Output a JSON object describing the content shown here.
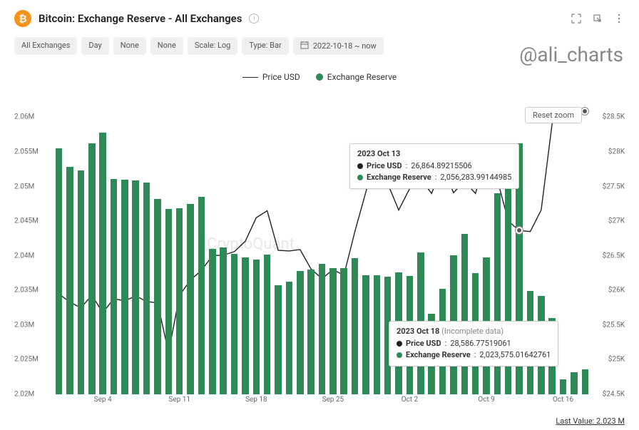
{
  "header": {
    "title": "Bitcoin: Exchange Reserve - All Exchanges",
    "logo_glyph": "₿",
    "logo_color": "#f7931a"
  },
  "filters": {
    "exchange": "All Exchanges",
    "interval": "Day",
    "sma1": "None",
    "sma2": "None",
    "scale": "Scale: Log",
    "type": "Type: Bar",
    "date_range": "2022-10-18 ~ now"
  },
  "watermark": "@ali_charts",
  "watermark_center": "CryptoQuant",
  "legend": {
    "price": "Price USD",
    "reserve": "Exchange Reserve",
    "reserve_color": "#2e8b57"
  },
  "chart": {
    "type": "bar+line",
    "bar_color": "#2e8b57",
    "line_color": "#222222",
    "background_color": "#ffffff",
    "y_left_label_fontsize": 10,
    "y_left_ticks": [
      "2.06M",
      "2.055M",
      "2.05M",
      "2.045M",
      "2.04M",
      "2.035M",
      "2.03M",
      "2.025M",
      "2.02M"
    ],
    "y_left_min": 2020000,
    "y_left_max": 2062000,
    "y_right_ticks": [
      "$28.5K",
      "$28K",
      "$27.5K",
      "$27K",
      "$26.5K",
      "$26K",
      "$25.5K",
      "$25K",
      "$24.5K"
    ],
    "y_right_min": 24500,
    "y_right_max": 28700,
    "x_ticks": [
      "Sep 4",
      "Sep 11",
      "Sep 18",
      "Sep 25",
      "Oct 2",
      "Oct 9",
      "Oct 16"
    ],
    "x_tick_indices": [
      4,
      11,
      18,
      25,
      32,
      39,
      46
    ],
    "bar_width": 0.62,
    "reserve_values": [
      2055500,
      2052800,
      2052300,
      2056200,
      2057800,
      2051100,
      2051000,
      2050900,
      2050600,
      2048200,
      2046800,
      2046900,
      2047500,
      2048500,
      2041000,
      2041200,
      2040300,
      2039800,
      2039500,
      2040200,
      2035800,
      2036300,
      2037800,
      2038000,
      2038800,
      2038200,
      2038200,
      2039700,
      2037200,
      2037200,
      2037000,
      2037600,
      2037100,
      2040500,
      2031600,
      2035200,
      2040100,
      2043200,
      2037500,
      2039800,
      2049000,
      2054000,
      2056280,
      2034900,
      2034200,
      2031000,
      2022200,
      2023200,
      2023575
    ],
    "price_values": [
      25950,
      25830,
      25750,
      25930,
      25680,
      25880,
      25850,
      25920,
      25840,
      25820,
      25100,
      25930,
      26150,
      26290,
      26500,
      26510,
      26560,
      26710,
      27050,
      27150,
      26580,
      26570,
      26590,
      26310,
      26170,
      26300,
      26220,
      26850,
      27420,
      27970,
      27540,
      27160,
      27470,
      27610,
      27400,
      27800,
      27410,
      27580,
      27400,
      27930,
      27600,
      27000,
      26865,
      26850,
      27160,
      28410,
      28520,
      28550,
      28587
    ]
  },
  "tooltips": {
    "t1": {
      "date": "2023 Oct 13",
      "price_label": "Price USD",
      "price_value": "26,864.89215506",
      "reserve_label": "Exchange Reserve",
      "reserve_value": "2,056,283.99144985"
    },
    "t2": {
      "date": "2023 Oct 18",
      "note": "(Incomplete data)",
      "price_label": "Price USD",
      "price_value": "28,586.77519061",
      "reserve_label": "Exchange Reserve",
      "reserve_value": "2,023,575.01642761"
    }
  },
  "reset_zoom": "Reset zoom",
  "footer": "Last Value: 2.023 M"
}
